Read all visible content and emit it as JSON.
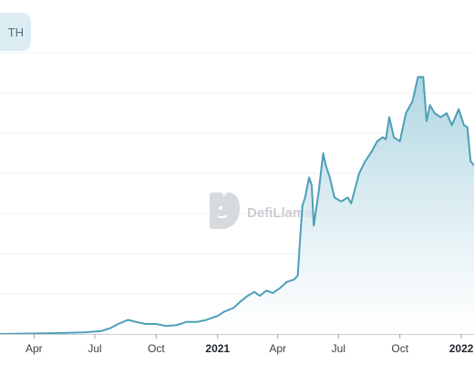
{
  "badge": {
    "label": "TH"
  },
  "watermark": {
    "text": "DefiLlama"
  },
  "colors": {
    "line": "#4d9fb8",
    "fill_top": "#9fcddc",
    "fill_bottom": "#ffffff",
    "grid": "#eef1f3"
  },
  "chart_data": {
    "type": "area",
    "title": "",
    "xlabel": "",
    "ylabel": "",
    "grid": true,
    "x_ticks": [
      {
        "label": "Apr",
        "date": "2020-04-01",
        "bold": false
      },
      {
        "label": "Jul",
        "date": "2020-07-01",
        "bold": false
      },
      {
        "label": "Oct",
        "date": "2020-10-01",
        "bold": false
      },
      {
        "label": "2021",
        "date": "2021-01-01",
        "bold": true
      },
      {
        "label": "Apr",
        "date": "2021-04-01",
        "bold": false
      },
      {
        "label": "Jul",
        "date": "2021-07-01",
        "bold": false
      },
      {
        "label": "Oct",
        "date": "2021-10-01",
        "bold": false
      },
      {
        "label": "2022",
        "date": "2022-01-01",
        "bold": true
      }
    ],
    "xlim": [
      "2020-02-10",
      "2022-01-20"
    ],
    "ylim": [
      0,
      7
    ],
    "series": [
      {
        "points": [
          [
            "2020-02-10",
            0.0
          ],
          [
            "2020-05-01",
            0.02
          ],
          [
            "2020-06-15",
            0.04
          ],
          [
            "2020-07-10",
            0.07
          ],
          [
            "2020-07-25",
            0.15
          ],
          [
            "2020-08-05",
            0.25
          ],
          [
            "2020-08-20",
            0.35
          ],
          [
            "2020-09-01",
            0.3
          ],
          [
            "2020-09-15",
            0.25
          ],
          [
            "2020-10-01",
            0.25
          ],
          [
            "2020-10-15",
            0.2
          ],
          [
            "2020-11-01",
            0.22
          ],
          [
            "2020-11-15",
            0.3
          ],
          [
            "2020-12-01",
            0.3
          ],
          [
            "2020-12-15",
            0.35
          ],
          [
            "2021-01-01",
            0.45
          ],
          [
            "2021-01-10",
            0.55
          ],
          [
            "2021-01-25",
            0.65
          ],
          [
            "2021-02-05",
            0.82
          ],
          [
            "2021-02-15",
            0.95
          ],
          [
            "2021-02-25",
            1.05
          ],
          [
            "2021-03-05",
            0.95
          ],
          [
            "2021-03-15",
            1.08
          ],
          [
            "2021-03-25",
            1.02
          ],
          [
            "2021-04-05",
            1.15
          ],
          [
            "2021-04-15",
            1.3
          ],
          [
            "2021-04-25",
            1.35
          ],
          [
            "2021-05-01",
            1.45
          ],
          [
            "2021-05-05",
            2.5
          ],
          [
            "2021-05-08",
            3.2
          ],
          [
            "2021-05-12",
            3.4
          ],
          [
            "2021-05-18",
            3.9
          ],
          [
            "2021-05-22",
            3.7
          ],
          [
            "2021-05-25",
            2.7
          ],
          [
            "2021-06-01",
            3.5
          ],
          [
            "2021-06-08",
            4.5
          ],
          [
            "2021-06-12",
            4.2
          ],
          [
            "2021-06-18",
            3.9
          ],
          [
            "2021-06-25",
            3.4
          ],
          [
            "2021-07-05",
            3.3
          ],
          [
            "2021-07-15",
            3.4
          ],
          [
            "2021-07-20",
            3.25
          ],
          [
            "2021-08-01",
            4.0
          ],
          [
            "2021-08-10",
            4.3
          ],
          [
            "2021-08-20",
            4.55
          ],
          [
            "2021-08-28",
            4.8
          ],
          [
            "2021-09-05",
            4.9
          ],
          [
            "2021-09-10",
            4.85
          ],
          [
            "2021-09-15",
            5.4
          ],
          [
            "2021-09-22",
            4.9
          ],
          [
            "2021-10-01",
            4.8
          ],
          [
            "2021-10-10",
            5.5
          ],
          [
            "2021-10-20",
            5.8
          ],
          [
            "2021-10-28",
            6.4
          ],
          [
            "2021-11-05",
            6.4
          ],
          [
            "2021-11-10",
            5.3
          ],
          [
            "2021-11-15",
            5.7
          ],
          [
            "2021-11-22",
            5.5
          ],
          [
            "2021-12-01",
            5.4
          ],
          [
            "2021-12-10",
            5.5
          ],
          [
            "2021-12-18",
            5.2
          ],
          [
            "2021-12-28",
            5.6
          ],
          [
            "2022-01-05",
            5.2
          ],
          [
            "2022-01-10",
            5.15
          ],
          [
            "2022-01-15",
            4.3
          ],
          [
            "2022-01-20",
            4.2
          ]
        ]
      }
    ]
  }
}
